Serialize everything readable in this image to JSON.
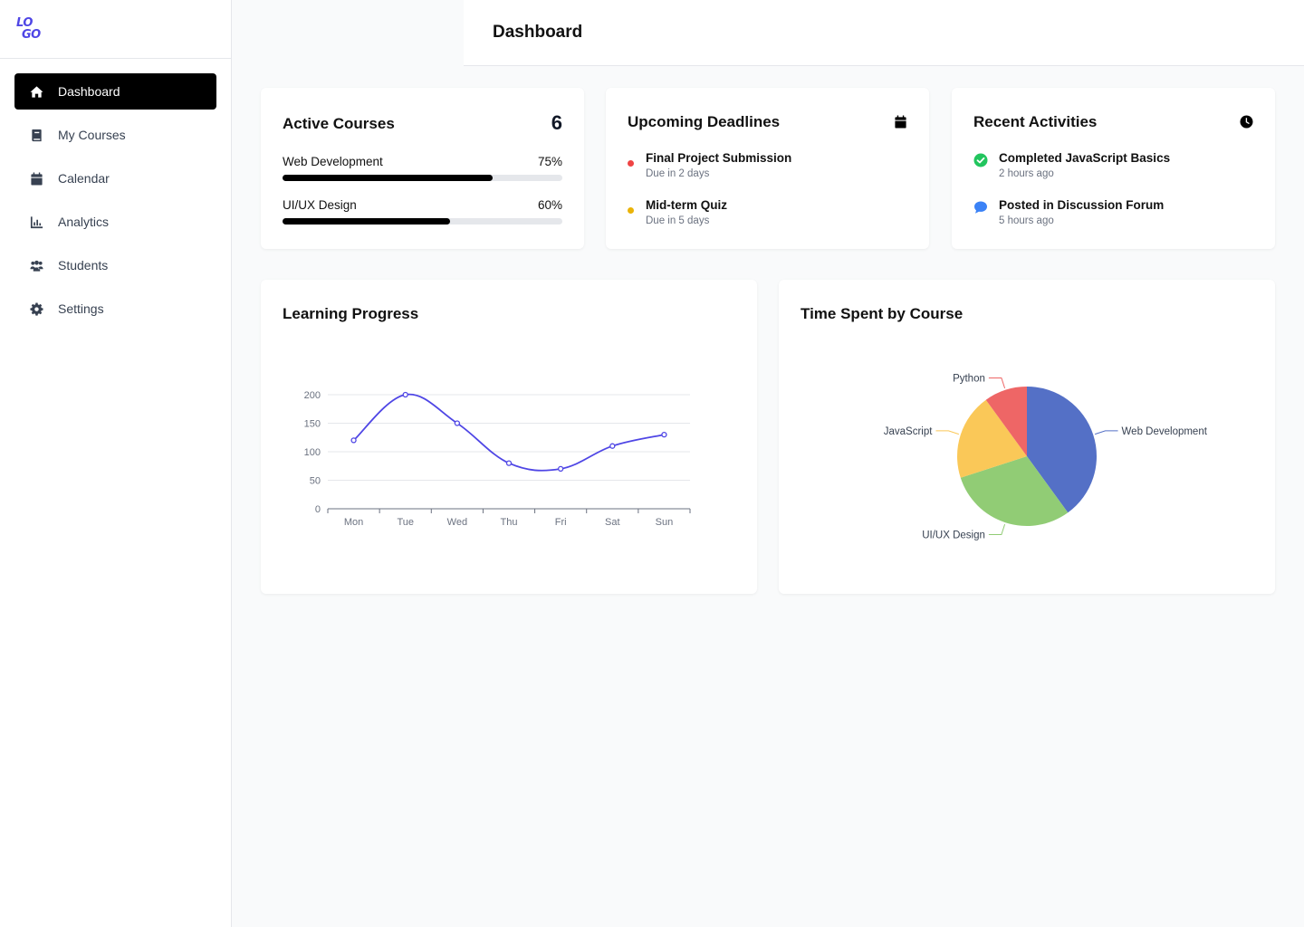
{
  "logo": {
    "line1": "LO",
    "line2": "GO"
  },
  "sidebar": {
    "items": [
      {
        "label": "Dashboard",
        "icon": "home-icon",
        "active": true
      },
      {
        "label": "My Courses",
        "icon": "book-icon",
        "active": false
      },
      {
        "label": "Calendar",
        "icon": "calendar-icon",
        "active": false
      },
      {
        "label": "Analytics",
        "icon": "bar-chart-icon",
        "active": false
      },
      {
        "label": "Students",
        "icon": "users-icon",
        "active": false
      },
      {
        "label": "Settings",
        "icon": "gear-icon",
        "active": false
      }
    ]
  },
  "header": {
    "title": "Dashboard"
  },
  "active_courses": {
    "title": "Active Courses",
    "count": "6",
    "courses": [
      {
        "name": "Web Development",
        "percent_label": "75%",
        "progress": 0.75
      },
      {
        "name": "UI/UX Design",
        "percent_label": "60%",
        "progress": 0.6
      }
    ]
  },
  "deadlines": {
    "title": "Upcoming Deadlines",
    "icon": "calendar-icon",
    "items": [
      {
        "title": "Final Project Submission",
        "due": "Due in 2 days",
        "color": "#ef4444"
      },
      {
        "title": "Mid-term Quiz",
        "due": "Due in 5 days",
        "color": "#eab308"
      }
    ]
  },
  "activities": {
    "title": "Recent Activities",
    "icon": "clock-icon",
    "items": [
      {
        "title": "Completed JavaScript Basics",
        "time": "2 hours ago",
        "icon": "check-circle-icon",
        "color": "#22c55e"
      },
      {
        "title": "Posted in Discussion Forum",
        "time": "5 hours ago",
        "icon": "chat-bubble-icon",
        "color": "#3b82f6"
      }
    ]
  },
  "learning_progress": {
    "title": "Learning Progress"
  },
  "time_spent": {
    "title": "Time Spent by Course"
  },
  "chart_data": [
    {
      "type": "line",
      "title": "Learning Progress",
      "categories": [
        "Mon",
        "Tue",
        "Wed",
        "Thu",
        "Fri",
        "Sat",
        "Sun"
      ],
      "series": [
        {
          "values": [
            120,
            200,
            150,
            80,
            70,
            110,
            130
          ],
          "color": "#4f46e5"
        }
      ],
      "ylim": [
        0,
        200
      ],
      "yticks": [
        0,
        50,
        100,
        150,
        200
      ],
      "grid": true
    },
    {
      "type": "pie",
      "title": "Time Spent by Course",
      "slices": [
        {
          "label": "Web Development",
          "value": 40,
          "color": "#5470c6"
        },
        {
          "label": "UI/UX Design",
          "value": 30,
          "color": "#91cc75"
        },
        {
          "label": "JavaScript",
          "value": 20,
          "color": "#fac858"
        },
        {
          "label": "Python",
          "value": 10,
          "color": "#ee6666"
        }
      ]
    }
  ]
}
